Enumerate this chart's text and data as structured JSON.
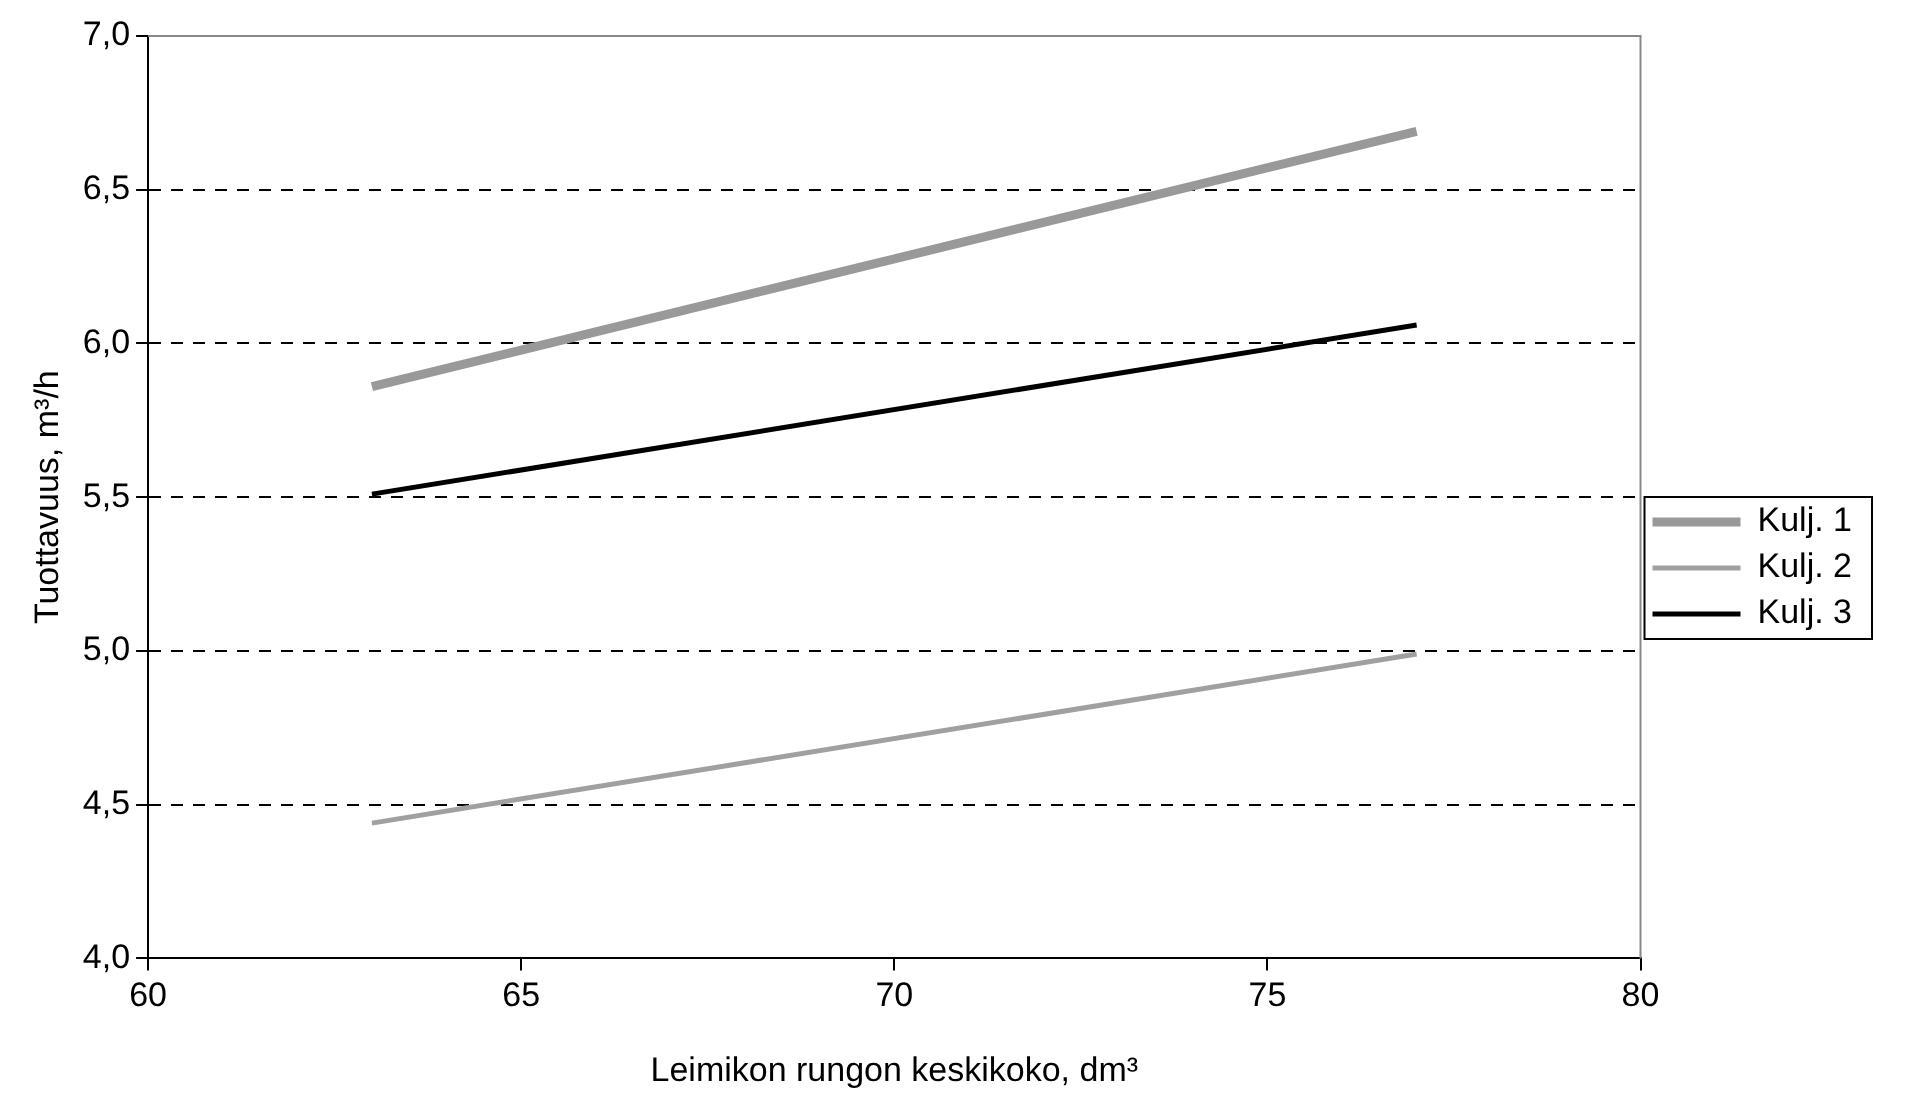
{
  "chart_data": {
    "type": "line",
    "xlabel": "Leimikon rungon keskikoko, dm³",
    "ylabel": "Tuottavuus, m³/h",
    "x": [
      63,
      77
    ],
    "series": [
      {
        "name": "Kulj. 1",
        "color": "#999999",
        "values": [
          5.86,
          6.69
        ]
      },
      {
        "name": "Kulj. 2",
        "color": "#a0a0a0",
        "values": [
          4.44,
          4.99
        ]
      },
      {
        "name": "Kulj. 3",
        "color": "#000000",
        "values": [
          5.51,
          6.06
        ]
      }
    ],
    "xlim": [
      60,
      80
    ],
    "xticks": [
      60,
      65,
      70,
      75,
      80
    ],
    "ylim": [
      4,
      7
    ],
    "yticks": [
      {
        "value": 4,
        "label": "4,0"
      },
      {
        "value": 4.5,
        "label": "4,5"
      },
      {
        "value": 5,
        "label": "5,0"
      },
      {
        "value": 5.5,
        "label": "5,5"
      },
      {
        "value": 6,
        "label": "6,0"
      },
      {
        "value": 6.5,
        "label": "6,5"
      },
      {
        "value": 7,
        "label": "7,0"
      }
    ],
    "grid": "y",
    "legend": "right",
    "marker": "none",
    "line_style": "solid"
  }
}
